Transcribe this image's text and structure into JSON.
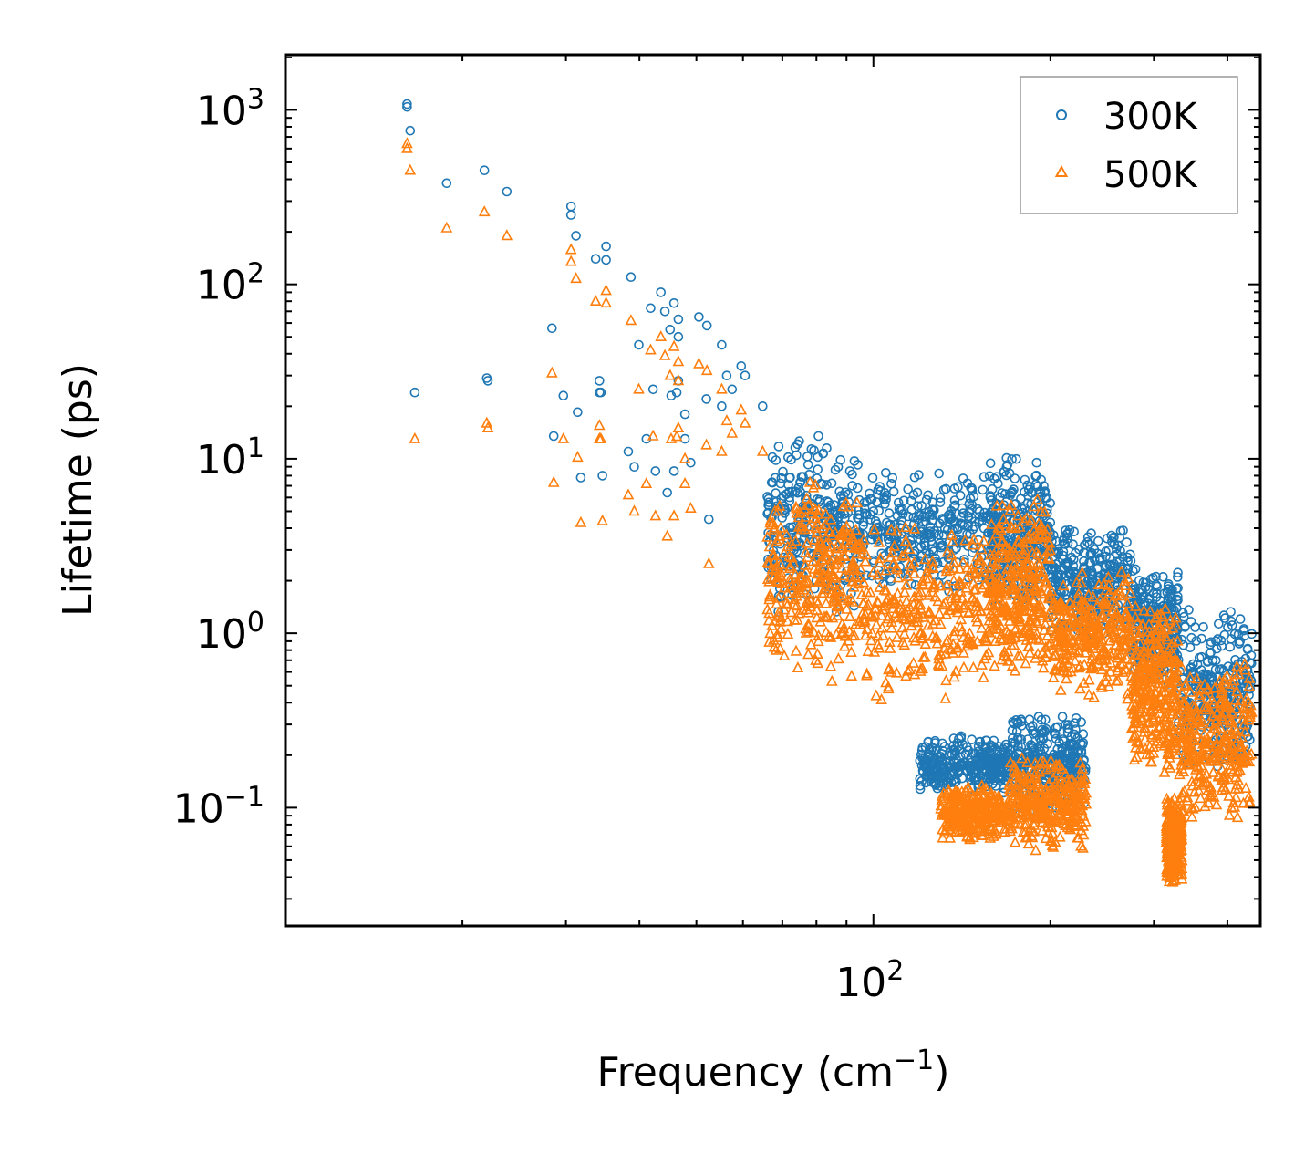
{
  "chart_data": {
    "type": "scatter",
    "title": "",
    "xlabel": "Frequency (cm",
    "xlabel_sup": "−1",
    "xlabel_close": ")",
    "ylabel": "Lifetime (ps)",
    "xscale": "log",
    "yscale": "log",
    "xlim": [
      10,
      455
    ],
    "ylim": [
      0.021,
      2070
    ],
    "x_major_ticks": [
      {
        "value": 100,
        "base": "10",
        "exp": "2"
      }
    ],
    "y_major_ticks": [
      {
        "value": 0.1,
        "base": "10",
        "exp": "−1"
      },
      {
        "value": 1,
        "base": "10",
        "exp": "0"
      },
      {
        "value": 10,
        "base": "10",
        "exp": "1"
      },
      {
        "value": 100,
        "base": "10",
        "exp": "2"
      },
      {
        "value": 1000,
        "base": "10",
        "exp": "3"
      }
    ],
    "legend_position": "top-right",
    "series": [
      {
        "name": "300K",
        "marker": "circle",
        "color": "#1f77b4",
        "anchor_points": [
          [
            16.1,
            1080
          ],
          [
            16.1,
            1040
          ],
          [
            16.3,
            760
          ],
          [
            16.6,
            24
          ],
          [
            18.8,
            380
          ],
          [
            21.8,
            450
          ],
          [
            22,
            29
          ],
          [
            22.1,
            28
          ],
          [
            23.8,
            340
          ],
          [
            28.4,
            56
          ],
          [
            28.6,
            13.5
          ],
          [
            29.7,
            23
          ],
          [
            30.6,
            280
          ],
          [
            30.6,
            250
          ],
          [
            31.2,
            190
          ],
          [
            31.4,
            18.5
          ],
          [
            31.8,
            7.8
          ],
          [
            33.7,
            140
          ],
          [
            34.2,
            28
          ],
          [
            34.2,
            24
          ],
          [
            34.4,
            24
          ],
          [
            34.6,
            8
          ],
          [
            35.1,
            165
          ],
          [
            35.1,
            138
          ],
          [
            38.3,
            11
          ],
          [
            38.7,
            110
          ],
          [
            39.2,
            9
          ],
          [
            39.9,
            45
          ],
          [
            41.1,
            13
          ],
          [
            41.8,
            73
          ],
          [
            42.2,
            25
          ],
          [
            42.6,
            8.5
          ],
          [
            43.5,
            90
          ],
          [
            44.2,
            70
          ],
          [
            44.6,
            6.4
          ],
          [
            45.1,
            55
          ],
          [
            45.3,
            23
          ],
          [
            45.8,
            78
          ],
          [
            45.8,
            8.5
          ],
          [
            46.3,
            24
          ],
          [
            46.6,
            63
          ],
          [
            46.6,
            50
          ],
          [
            46.6,
            28
          ],
          [
            47.8,
            18
          ],
          [
            47.8,
            13
          ],
          [
            48.9,
            9.5
          ],
          [
            50.5,
            65
          ],
          [
            52.1,
            58
          ],
          [
            52,
            22
          ],
          [
            52.5,
            4.5
          ],
          [
            55.2,
            45
          ],
          [
            55.2,
            20
          ],
          [
            56.3,
            30
          ],
          [
            57.5,
            25
          ],
          [
            59.6,
            34
          ],
          [
            60.5,
            30
          ],
          [
            64.8,
            20
          ]
        ],
        "clusters": [
          {
            "x_range": [
              66,
              95
            ],
            "y_range": [
              1.2,
              14
            ]
          },
          {
            "x_range": [
              95,
              160
            ],
            "y_range": [
              1.6,
              9
            ]
          },
          {
            "x_range": [
              158,
              200
            ],
            "y_range": [
              1.2,
              11
            ]
          },
          {
            "x_range": [
              200,
              275
            ],
            "y_range": [
              0.9,
              4.2
            ]
          },
          {
            "x_range": [
              275,
              330
            ],
            "y_range": [
              0.5,
              2.4
            ]
          },
          {
            "x_range": [
              330,
              440
            ],
            "y_range": [
              0.15,
              1.4
            ]
          },
          {
            "x_range": [
              120,
              170
            ],
            "y_range": [
              0.12,
              0.26
            ]
          },
          {
            "x_range": [
              170,
              230
            ],
            "y_range": [
              0.09,
              0.35
            ]
          }
        ]
      },
      {
        "name": "500K",
        "marker": "triangle",
        "color": "#ff7f0e",
        "anchor_points": [
          [
            16.1,
            640
          ],
          [
            16.1,
            600
          ],
          [
            16.3,
            450
          ],
          [
            16.6,
            13
          ],
          [
            18.8,
            210
          ],
          [
            21.8,
            260
          ],
          [
            22,
            16
          ],
          [
            22.1,
            15
          ],
          [
            23.8,
            190
          ],
          [
            28.4,
            31
          ],
          [
            28.6,
            7.3
          ],
          [
            29.7,
            13
          ],
          [
            30.6,
            158
          ],
          [
            30.6,
            135
          ],
          [
            31.2,
            108
          ],
          [
            31.4,
            10.2
          ],
          [
            31.8,
            4.3
          ],
          [
            33.7,
            80
          ],
          [
            34.2,
            15.5
          ],
          [
            34.2,
            13
          ],
          [
            34.4,
            13
          ],
          [
            34.6,
            4.4
          ],
          [
            35.1,
            92
          ],
          [
            35.1,
            78
          ],
          [
            38.3,
            6.2
          ],
          [
            38.7,
            62
          ],
          [
            39.2,
            5
          ],
          [
            39.9,
            25
          ],
          [
            41.1,
            7.2
          ],
          [
            41.8,
            42
          ],
          [
            42.2,
            13.5
          ],
          [
            42.6,
            4.7
          ],
          [
            43.5,
            50
          ],
          [
            44.2,
            39
          ],
          [
            44.6,
            3.6
          ],
          [
            45.1,
            30
          ],
          [
            45.3,
            13
          ],
          [
            45.8,
            44
          ],
          [
            45.8,
            4.7
          ],
          [
            46.3,
            13.4
          ],
          [
            46.6,
            36
          ],
          [
            46.6,
            28
          ],
          [
            46.6,
            15
          ],
          [
            47.8,
            10
          ],
          [
            47.8,
            7.2
          ],
          [
            48.9,
            5.2
          ],
          [
            50.5,
            35
          ],
          [
            52.1,
            32
          ],
          [
            52,
            12
          ],
          [
            52.5,
            2.5
          ],
          [
            55.2,
            25
          ],
          [
            55.2,
            11
          ],
          [
            56.3,
            16.5
          ],
          [
            57.5,
            14
          ],
          [
            59.6,
            19
          ],
          [
            60.5,
            16
          ],
          [
            64.8,
            11
          ]
        ],
        "clusters": [
          {
            "x_range": [
              66,
              95
            ],
            "y_range": [
              0.5,
              8
            ]
          },
          {
            "x_range": [
              95,
              160
            ],
            "y_range": [
              0.4,
              4.5
            ]
          },
          {
            "x_range": [
              158,
              200
            ],
            "y_range": [
              0.5,
              6
            ]
          },
          {
            "x_range": [
              200,
              275
            ],
            "y_range": [
              0.4,
              2.4
            ]
          },
          {
            "x_range": [
              275,
              330
            ],
            "y_range": [
              0.15,
              1.5
            ]
          },
          {
            "x_range": [
              315,
              335
            ],
            "y_range": [
              0.035,
              0.12
            ]
          },
          {
            "x_range": [
              330,
              440
            ],
            "y_range": [
              0.08,
              0.7
            ]
          },
          {
            "x_range": [
              130,
              170
            ],
            "y_range": [
              0.065,
              0.14
            ]
          },
          {
            "x_range": [
              170,
              230
            ],
            "y_range": [
              0.055,
              0.2
            ]
          }
        ]
      }
    ]
  }
}
